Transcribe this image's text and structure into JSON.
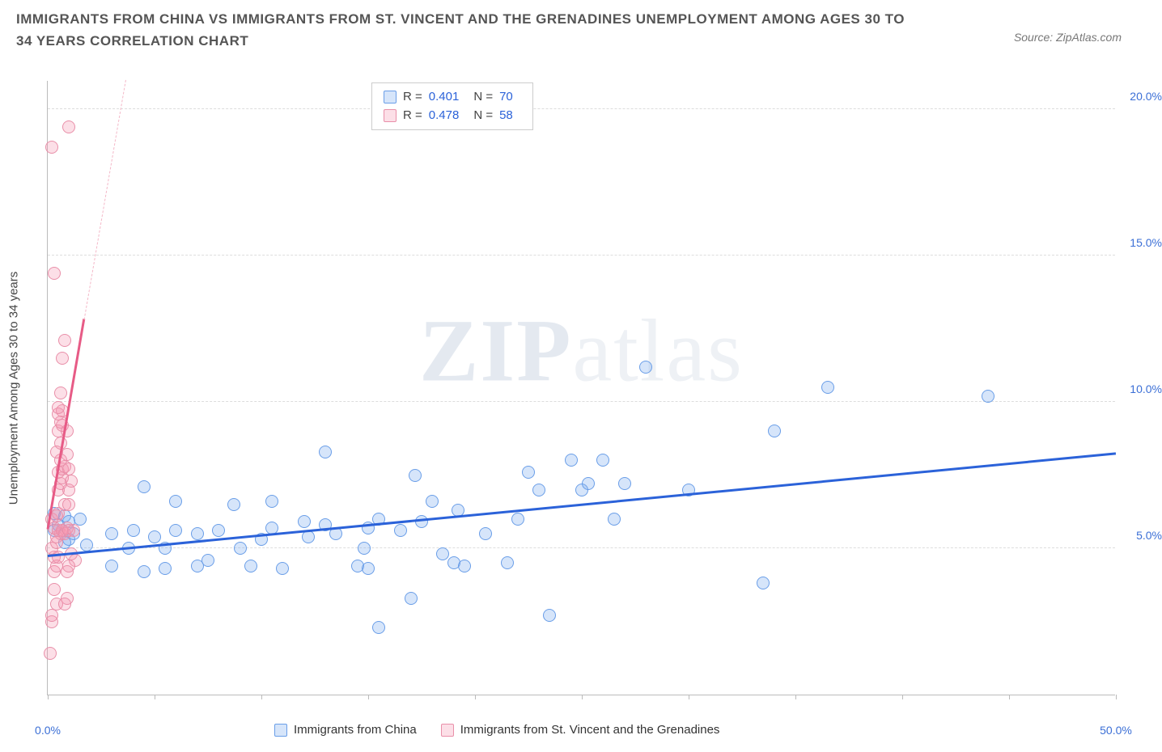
{
  "title": "IMMIGRANTS FROM CHINA VS IMMIGRANTS FROM ST. VINCENT AND THE GRENADINES UNEMPLOYMENT AMONG AGES 30 TO 34 YEARS CORRELATION CHART",
  "source": "Source: ZipAtlas.com",
  "watermark_bold": "ZIP",
  "watermark_rest": "atlas",
  "chart": {
    "type": "scatter",
    "xlim": [
      0,
      50
    ],
    "ylim": [
      0,
      21
    ],
    "ylabel": "Unemployment Among Ages 30 to 34 years",
    "yticks": [
      {
        "v": 5,
        "label": "5.0%"
      },
      {
        "v": 10,
        "label": "10.0%"
      },
      {
        "v": 15,
        "label": "15.0%"
      },
      {
        "v": 20,
        "label": "20.0%"
      }
    ],
    "xticks_at": [
      0,
      5,
      10,
      15,
      20,
      25,
      30,
      35,
      40,
      45,
      50
    ],
    "xtick_labels": {
      "0": "0.0%",
      "50": "50.0%"
    },
    "grid_color": "#dddddd",
    "background_color": "#ffffff",
    "axis_color": "#bbbbbb",
    "tick_label_color": "#3b6fd6",
    "point_radius": 8,
    "series": [
      {
        "key": "china",
        "legend_label": "Immigrants from China",
        "fill": "rgba(120,170,240,0.30)",
        "stroke": "#6a9ee8",
        "trend_color": "#2b62d9",
        "trend_dash_color": "#a9c3f0",
        "trend_width": 3,
        "R": "0.401",
        "N": "70",
        "trend": {
          "x1": 0,
          "y1": 4.7,
          "x2": 50,
          "y2": 8.2
        },
        "points": [
          [
            0.3,
            6.2
          ],
          [
            0.3,
            5.6
          ],
          [
            0.5,
            5.8
          ],
          [
            0.8,
            6.1
          ],
          [
            1.0,
            5.9
          ],
          [
            1.0,
            5.3
          ],
          [
            1.2,
            5.5
          ],
          [
            1.5,
            6.0
          ],
          [
            3.0,
            5.5
          ],
          [
            3.0,
            4.4
          ],
          [
            3.8,
            5.0
          ],
          [
            4.0,
            5.6
          ],
          [
            4.5,
            4.2
          ],
          [
            4.5,
            7.1
          ],
          [
            5.0,
            5.4
          ],
          [
            5.5,
            5.0
          ],
          [
            5.5,
            4.3
          ],
          [
            6.0,
            5.6
          ],
          [
            6.0,
            6.6
          ],
          [
            7.0,
            4.4
          ],
          [
            7.0,
            5.5
          ],
          [
            7.5,
            4.6
          ],
          [
            8.0,
            5.6
          ],
          [
            8.7,
            6.5
          ],
          [
            9.0,
            5.0
          ],
          [
            9.5,
            4.4
          ],
          [
            10.0,
            5.3
          ],
          [
            10.5,
            5.7
          ],
          [
            10.5,
            6.6
          ],
          [
            11.0,
            4.3
          ],
          [
            12.0,
            5.9
          ],
          [
            12.2,
            5.4
          ],
          [
            13.0,
            5.8
          ],
          [
            13.0,
            8.3
          ],
          [
            13.5,
            5.5
          ],
          [
            14.5,
            4.4
          ],
          [
            14.8,
            5.0
          ],
          [
            15.0,
            5.7
          ],
          [
            15.0,
            4.3
          ],
          [
            15.5,
            2.3
          ],
          [
            15.5,
            6.0
          ],
          [
            16.5,
            5.6
          ],
          [
            17.0,
            3.3
          ],
          [
            17.2,
            7.5
          ],
          [
            17.5,
            5.9
          ],
          [
            18.0,
            6.6
          ],
          [
            18.5,
            4.8
          ],
          [
            19.0,
            4.5
          ],
          [
            19.2,
            6.3
          ],
          [
            19.5,
            4.4
          ],
          [
            20.5,
            5.5
          ],
          [
            21.5,
            4.5
          ],
          [
            22.0,
            6.0
          ],
          [
            22.5,
            7.6
          ],
          [
            23.0,
            7.0
          ],
          [
            23.5,
            2.7
          ],
          [
            24.5,
            8.0
          ],
          [
            25.0,
            7.0
          ],
          [
            25.3,
            7.2
          ],
          [
            26.0,
            8.0
          ],
          [
            26.5,
            6.0
          ],
          [
            27.0,
            7.2
          ],
          [
            28.0,
            11.2
          ],
          [
            30.0,
            7.0
          ],
          [
            33.5,
            3.8
          ],
          [
            34.0,
            9.0
          ],
          [
            36.5,
            10.5
          ],
          [
            44.0,
            10.2
          ],
          [
            0.8,
            5.2
          ],
          [
            1.8,
            5.1
          ]
        ]
      },
      {
        "key": "svg_gren",
        "legend_label": "Immigrants from St. Vincent and the Grenadines",
        "fill": "rgba(245,150,175,0.30)",
        "stroke": "#e98fa9",
        "trend_color": "#e75b86",
        "trend_dash_color": "#f4b8c8",
        "trend_width": 3,
        "R": "0.478",
        "N": "58",
        "trend": {
          "x1": 0,
          "y1": 5.6,
          "x2": 1.7,
          "y2": 12.8
        },
        "trend_dash": {
          "x1": 1.7,
          "y1": 12.8,
          "x2": 3.65,
          "y2": 21
        },
        "points": [
          [
            0.1,
            1.4
          ],
          [
            0.2,
            2.5
          ],
          [
            0.2,
            2.7
          ],
          [
            0.4,
            3.1
          ],
          [
            0.3,
            4.2
          ],
          [
            0.4,
            4.4
          ],
          [
            0.3,
            4.7
          ],
          [
            0.5,
            4.7
          ],
          [
            0.2,
            5.0
          ],
          [
            0.4,
            5.2
          ],
          [
            0.4,
            5.4
          ],
          [
            0.6,
            5.5
          ],
          [
            0.3,
            5.7
          ],
          [
            0.5,
            5.6
          ],
          [
            0.7,
            5.6
          ],
          [
            0.2,
            6.0
          ],
          [
            0.4,
            6.1
          ],
          [
            0.5,
            6.2
          ],
          [
            0.7,
            5.6
          ],
          [
            0.8,
            5.5
          ],
          [
            0.9,
            5.7
          ],
          [
            0.8,
            6.5
          ],
          [
            0.5,
            7.0
          ],
          [
            0.6,
            7.2
          ],
          [
            0.7,
            7.4
          ],
          [
            0.5,
            7.6
          ],
          [
            0.7,
            7.7
          ],
          [
            0.8,
            7.8
          ],
          [
            0.6,
            8.0
          ],
          [
            0.4,
            8.3
          ],
          [
            0.6,
            8.6
          ],
          [
            0.5,
            9.0
          ],
          [
            0.7,
            9.2
          ],
          [
            0.6,
            9.3
          ],
          [
            0.5,
            9.6
          ],
          [
            0.7,
            9.7
          ],
          [
            0.5,
            9.8
          ],
          [
            0.6,
            10.3
          ],
          [
            0.7,
            11.5
          ],
          [
            0.8,
            12.1
          ],
          [
            0.3,
            14.4
          ],
          [
            0.2,
            18.7
          ],
          [
            1.0,
            19.4
          ],
          [
            1.0,
            5.6
          ],
          [
            1.1,
            4.8
          ],
          [
            1.2,
            5.6
          ],
          [
            1.3,
            4.6
          ],
          [
            1.0,
            4.4
          ],
          [
            0.9,
            4.2
          ],
          [
            0.9,
            3.3
          ],
          [
            0.8,
            3.1
          ],
          [
            1.0,
            6.5
          ],
          [
            1.0,
            7.0
          ],
          [
            1.1,
            7.3
          ],
          [
            1.0,
            7.7
          ],
          [
            0.9,
            8.2
          ],
          [
            0.9,
            9.0
          ],
          [
            0.3,
            3.6
          ]
        ]
      }
    ]
  }
}
